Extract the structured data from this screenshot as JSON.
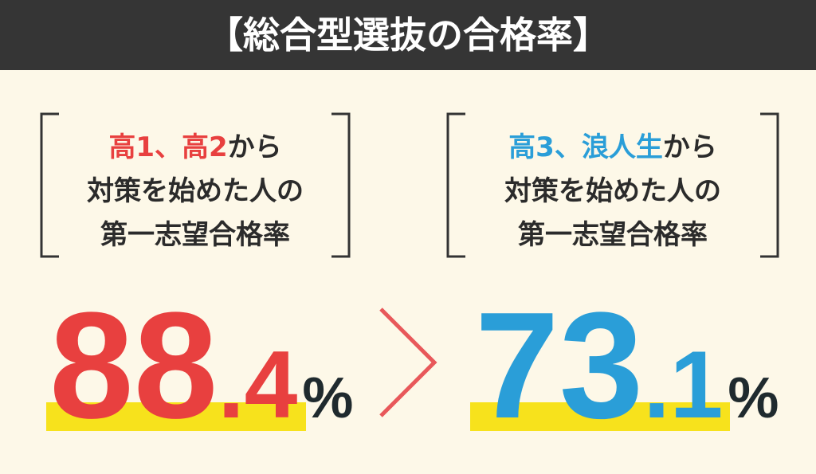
{
  "header": {
    "title": "【総合型選抜の合格率】"
  },
  "panels": [
    {
      "lead": "高1、高2",
      "lead_rest": "から",
      "line2": "対策を始めた人の",
      "line3": "第一志望合格率",
      "value_int": "88",
      "value_dec": ".4",
      "unit": "%"
    },
    {
      "lead": "高3、浪人生",
      "lead_rest": "から",
      "line2": "対策を始めた人の",
      "line3": "第一志望合格率",
      "value_int": "73",
      "value_dec": ".1",
      "unit": "%"
    }
  ]
}
